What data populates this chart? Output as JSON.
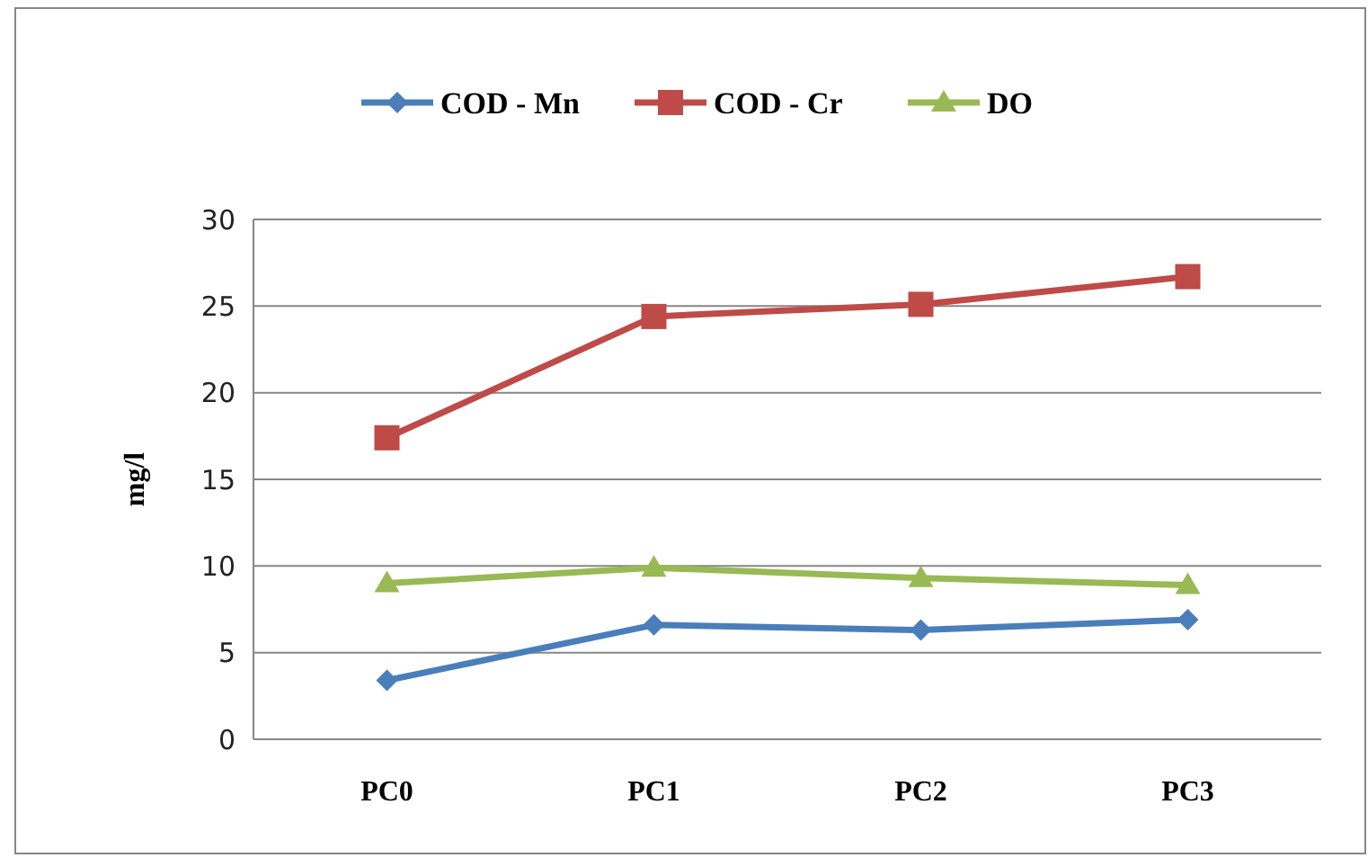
{
  "chart_data": {
    "type": "line",
    "ylabel": "mg/l",
    "categories": [
      "PC0",
      "PC1",
      "PC2",
      "PC3"
    ],
    "series": [
      {
        "name": "COD - Mn",
        "color": "#4a7ebb",
        "values": [
          3.4,
          6.6,
          6.3,
          6.9
        ],
        "marker": "diamond"
      },
      {
        "name": "COD - Cr",
        "color": "#be4b48",
        "values": [
          17.4,
          24.4,
          25.1,
          26.7
        ],
        "marker": "square"
      },
      {
        "name": "DO",
        "color": "#98b954",
        "values": [
          9.0,
          9.9,
          9.3,
          8.9
        ],
        "marker": "triangle"
      }
    ],
    "ylim": [
      0,
      30
    ],
    "yticks": [
      0,
      5,
      10,
      15,
      20,
      25,
      30
    ],
    "grid": "y",
    "legend": "top"
  }
}
